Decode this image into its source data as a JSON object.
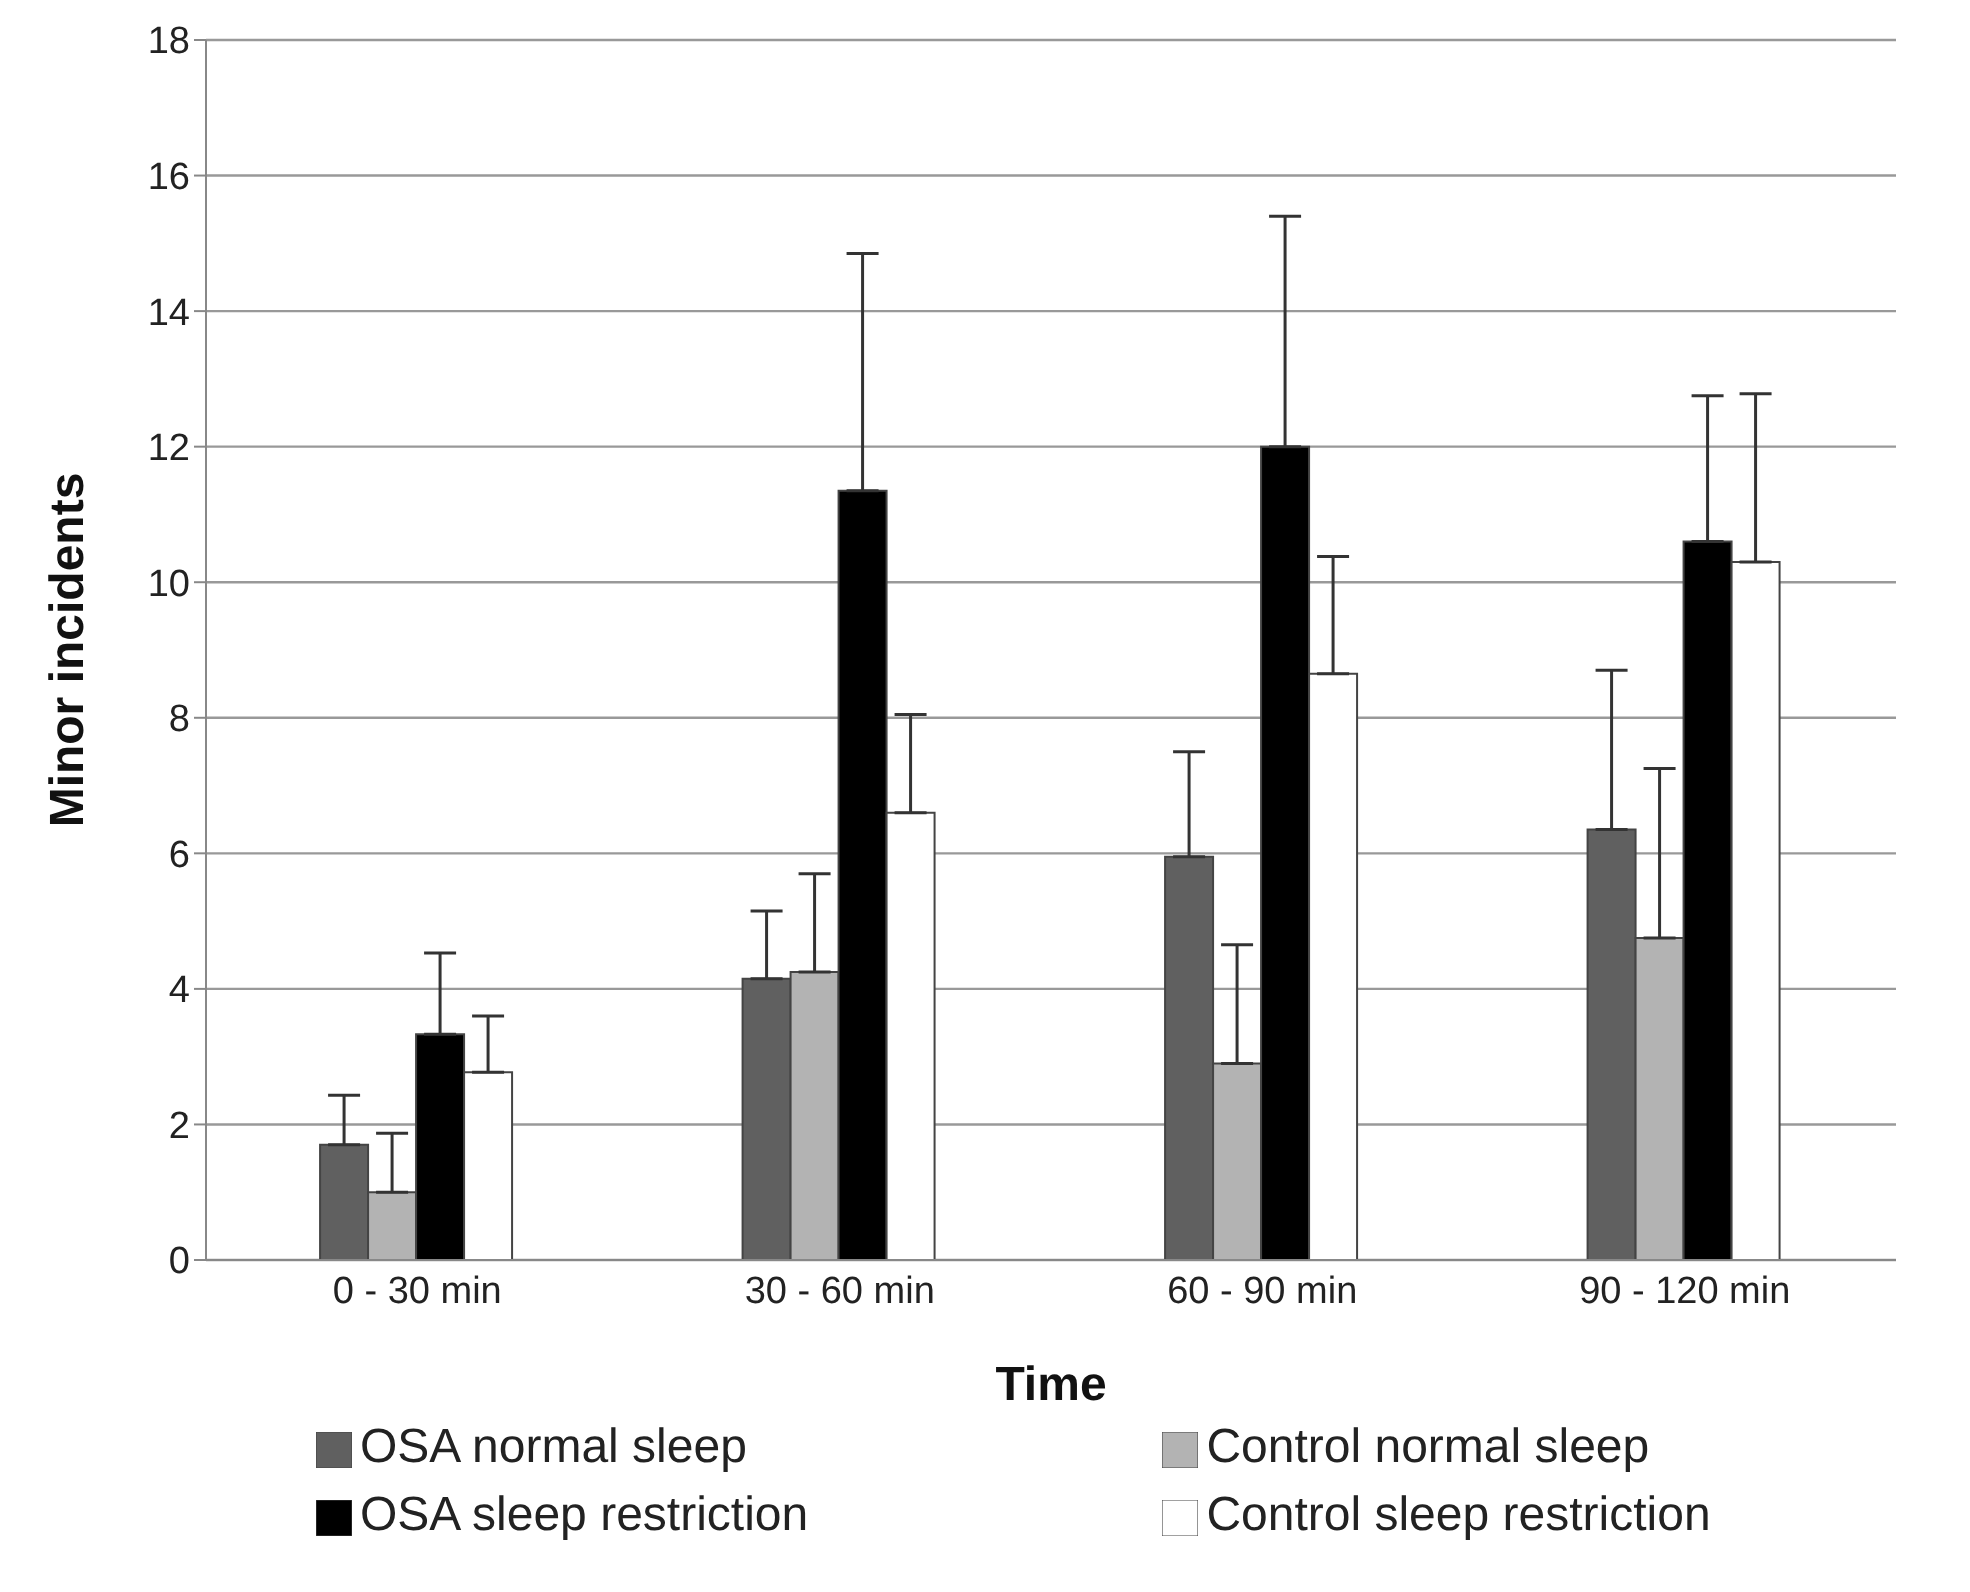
{
  "chart_data": {
    "type": "bar",
    "xlabel": "Time",
    "ylabel": "Minor incidents",
    "categories": [
      "0 - 30 min",
      "30 - 60 min",
      "60 - 90 min",
      "90 - 120 min"
    ],
    "series": [
      {
        "name": "OSA normal sleep",
        "color": "#606060",
        "values": [
          1.7,
          4.15,
          5.95,
          6.35
        ],
        "errors": [
          [
            1.7,
            2.43
          ],
          [
            4.15,
            5.15
          ],
          [
            5.95,
            7.5
          ],
          [
            6.35,
            8.7
          ]
        ]
      },
      {
        "name": "Control normal sleep",
        "color": "#b3b3b3",
        "values": [
          1.0,
          4.25,
          2.9,
          4.75
        ],
        "errors": [
          [
            1.0,
            1.87
          ],
          [
            4.25,
            5.7
          ],
          [
            2.9,
            4.65
          ],
          [
            4.75,
            7.25
          ]
        ]
      },
      {
        "name": "OSA sleep restriction",
        "color": "#000000",
        "values": [
          3.33,
          11.35,
          12.0,
          10.6
        ],
        "errors": [
          [
            3.33,
            4.53
          ],
          [
            11.35,
            14.85
          ],
          [
            12.0,
            15.4
          ],
          [
            10.6,
            12.75
          ]
        ]
      },
      {
        "name": "Control sleep restriction",
        "color": "#ffffff",
        "values": [
          2.77,
          6.6,
          8.65,
          10.3
        ],
        "errors": [
          [
            2.77,
            3.6
          ],
          [
            6.6,
            8.05
          ],
          [
            8.65,
            10.38
          ],
          [
            10.3,
            12.78
          ]
        ]
      }
    ],
    "ylim": [
      0,
      18
    ],
    "yticks": [
      0,
      2,
      4,
      6,
      8,
      10,
      12,
      14,
      16,
      18
    ],
    "grid": "y",
    "legend": "bottom"
  }
}
